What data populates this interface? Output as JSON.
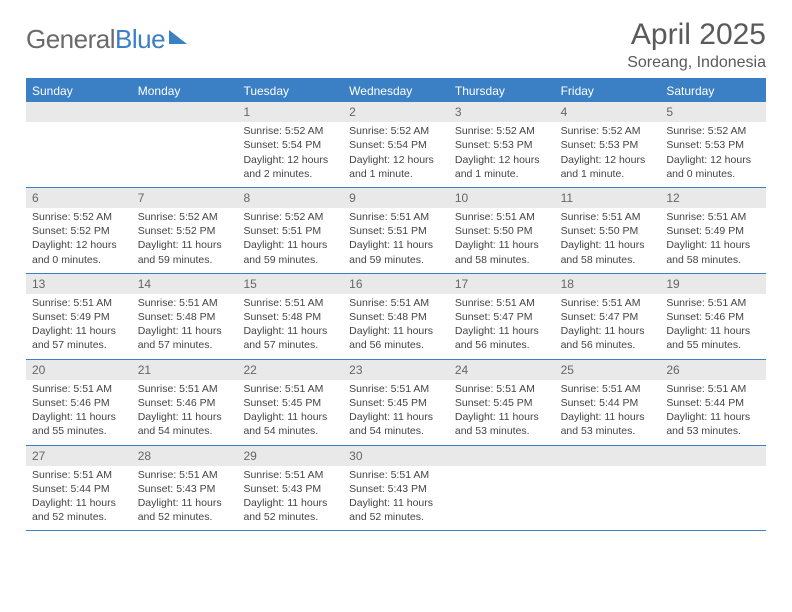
{
  "brand": {
    "part1": "General",
    "part2": "Blue"
  },
  "title": "April 2025",
  "location": "Soreang, Indonesia",
  "colors": {
    "accent": "#3b7fc4",
    "headerText": "#5a5a5a",
    "bandBg": "#e9e9e9"
  },
  "dow": [
    "Sunday",
    "Monday",
    "Tuesday",
    "Wednesday",
    "Thursday",
    "Friday",
    "Saturday"
  ],
  "weeks": [
    [
      null,
      null,
      {
        "n": "1",
        "sr": "Sunrise: 5:52 AM",
        "ss": "Sunset: 5:54 PM",
        "dl": "Daylight: 12 hours and 2 minutes."
      },
      {
        "n": "2",
        "sr": "Sunrise: 5:52 AM",
        "ss": "Sunset: 5:54 PM",
        "dl": "Daylight: 12 hours and 1 minute."
      },
      {
        "n": "3",
        "sr": "Sunrise: 5:52 AM",
        "ss": "Sunset: 5:53 PM",
        "dl": "Daylight: 12 hours and 1 minute."
      },
      {
        "n": "4",
        "sr": "Sunrise: 5:52 AM",
        "ss": "Sunset: 5:53 PM",
        "dl": "Daylight: 12 hours and 1 minute."
      },
      {
        "n": "5",
        "sr": "Sunrise: 5:52 AM",
        "ss": "Sunset: 5:53 PM",
        "dl": "Daylight: 12 hours and 0 minutes."
      }
    ],
    [
      {
        "n": "6",
        "sr": "Sunrise: 5:52 AM",
        "ss": "Sunset: 5:52 PM",
        "dl": "Daylight: 12 hours and 0 minutes."
      },
      {
        "n": "7",
        "sr": "Sunrise: 5:52 AM",
        "ss": "Sunset: 5:52 PM",
        "dl": "Daylight: 11 hours and 59 minutes."
      },
      {
        "n": "8",
        "sr": "Sunrise: 5:52 AM",
        "ss": "Sunset: 5:51 PM",
        "dl": "Daylight: 11 hours and 59 minutes."
      },
      {
        "n": "9",
        "sr": "Sunrise: 5:51 AM",
        "ss": "Sunset: 5:51 PM",
        "dl": "Daylight: 11 hours and 59 minutes."
      },
      {
        "n": "10",
        "sr": "Sunrise: 5:51 AM",
        "ss": "Sunset: 5:50 PM",
        "dl": "Daylight: 11 hours and 58 minutes."
      },
      {
        "n": "11",
        "sr": "Sunrise: 5:51 AM",
        "ss": "Sunset: 5:50 PM",
        "dl": "Daylight: 11 hours and 58 minutes."
      },
      {
        "n": "12",
        "sr": "Sunrise: 5:51 AM",
        "ss": "Sunset: 5:49 PM",
        "dl": "Daylight: 11 hours and 58 minutes."
      }
    ],
    [
      {
        "n": "13",
        "sr": "Sunrise: 5:51 AM",
        "ss": "Sunset: 5:49 PM",
        "dl": "Daylight: 11 hours and 57 minutes."
      },
      {
        "n": "14",
        "sr": "Sunrise: 5:51 AM",
        "ss": "Sunset: 5:48 PM",
        "dl": "Daylight: 11 hours and 57 minutes."
      },
      {
        "n": "15",
        "sr": "Sunrise: 5:51 AM",
        "ss": "Sunset: 5:48 PM",
        "dl": "Daylight: 11 hours and 57 minutes."
      },
      {
        "n": "16",
        "sr": "Sunrise: 5:51 AM",
        "ss": "Sunset: 5:48 PM",
        "dl": "Daylight: 11 hours and 56 minutes."
      },
      {
        "n": "17",
        "sr": "Sunrise: 5:51 AM",
        "ss": "Sunset: 5:47 PM",
        "dl": "Daylight: 11 hours and 56 minutes."
      },
      {
        "n": "18",
        "sr": "Sunrise: 5:51 AM",
        "ss": "Sunset: 5:47 PM",
        "dl": "Daylight: 11 hours and 56 minutes."
      },
      {
        "n": "19",
        "sr": "Sunrise: 5:51 AM",
        "ss": "Sunset: 5:46 PM",
        "dl": "Daylight: 11 hours and 55 minutes."
      }
    ],
    [
      {
        "n": "20",
        "sr": "Sunrise: 5:51 AM",
        "ss": "Sunset: 5:46 PM",
        "dl": "Daylight: 11 hours and 55 minutes."
      },
      {
        "n": "21",
        "sr": "Sunrise: 5:51 AM",
        "ss": "Sunset: 5:46 PM",
        "dl": "Daylight: 11 hours and 54 minutes."
      },
      {
        "n": "22",
        "sr": "Sunrise: 5:51 AM",
        "ss": "Sunset: 5:45 PM",
        "dl": "Daylight: 11 hours and 54 minutes."
      },
      {
        "n": "23",
        "sr": "Sunrise: 5:51 AM",
        "ss": "Sunset: 5:45 PM",
        "dl": "Daylight: 11 hours and 54 minutes."
      },
      {
        "n": "24",
        "sr": "Sunrise: 5:51 AM",
        "ss": "Sunset: 5:45 PM",
        "dl": "Daylight: 11 hours and 53 minutes."
      },
      {
        "n": "25",
        "sr": "Sunrise: 5:51 AM",
        "ss": "Sunset: 5:44 PM",
        "dl": "Daylight: 11 hours and 53 minutes."
      },
      {
        "n": "26",
        "sr": "Sunrise: 5:51 AM",
        "ss": "Sunset: 5:44 PM",
        "dl": "Daylight: 11 hours and 53 minutes."
      }
    ],
    [
      {
        "n": "27",
        "sr": "Sunrise: 5:51 AM",
        "ss": "Sunset: 5:44 PM",
        "dl": "Daylight: 11 hours and 52 minutes."
      },
      {
        "n": "28",
        "sr": "Sunrise: 5:51 AM",
        "ss": "Sunset: 5:43 PM",
        "dl": "Daylight: 11 hours and 52 minutes."
      },
      {
        "n": "29",
        "sr": "Sunrise: 5:51 AM",
        "ss": "Sunset: 5:43 PM",
        "dl": "Daylight: 11 hours and 52 minutes."
      },
      {
        "n": "30",
        "sr": "Sunrise: 5:51 AM",
        "ss": "Sunset: 5:43 PM",
        "dl": "Daylight: 11 hours and 52 minutes."
      },
      null,
      null,
      null
    ]
  ]
}
